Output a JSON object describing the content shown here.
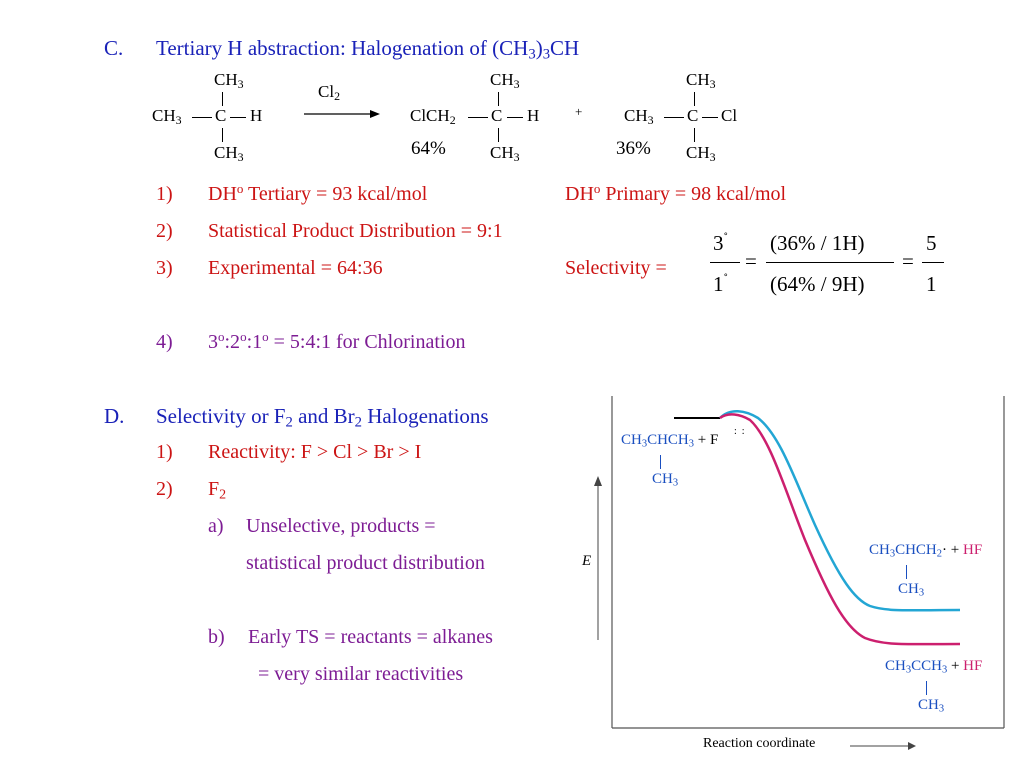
{
  "sectionC": {
    "letter": "C.",
    "title_pre": "Tertiary H abstraction: Halogenation of (CH",
    "title_sub1": "3",
    "title_mid": ")",
    "title_sub2": "3",
    "title_post": "CH"
  },
  "reaction": {
    "reactant": {
      "top": "CH",
      "top_sub": "3",
      "left": "CH",
      "left_sub": "3",
      "center": "C",
      "right": "H",
      "bottom": "CH",
      "bottom_sub": "3"
    },
    "reagent": "Cl",
    "reagent_sub": "2",
    "product1": {
      "top": "CH",
      "top_sub": "3",
      "left_a": "ClCH",
      "left_sub": "2",
      "center": "C",
      "right": "H",
      "bottom": "CH",
      "bottom_sub": "3",
      "yield": "64%"
    },
    "plus": "+",
    "product2": {
      "top": "CH",
      "top_sub": "3",
      "left": "CH",
      "left_sub": "3",
      "center": "C",
      "right": "Cl",
      "bottom": "CH",
      "bottom_sub": "3",
      "yield": "36%"
    }
  },
  "itemsC": {
    "n1": "1)",
    "i1_a": "DH",
    "i1_sup": "o",
    "i1_b": " Tertiary = 93 kcal/mol",
    "i1_c": "DH",
    "i1_c_sup": "o",
    "i1_d": " Primary = 98 kcal/mol",
    "n2": "2)",
    "i2": "Statistical Product Distribution = 9:1",
    "n3": "3)",
    "i3": "Experimental = 64:36",
    "i3_sel": "Selectivity =",
    "n4": "4)",
    "i4_a": "3",
    "i4_s1": "o",
    "i4_b": ":2",
    "i4_s2": "o",
    "i4_c": ":1",
    "i4_s3": "o",
    "i4_d": " = 5:4:1 for Chlorination"
  },
  "selectivity_eq": {
    "l_num": "3",
    "l_num_sup": "˚",
    "l_den": "1",
    "l_den_sup": "˚",
    "eq1": "=",
    "m_num": "(36% / 1H)",
    "m_den": "(64% / 9H)",
    "eq2": "=",
    "r_num": "5",
    "r_den": "1"
  },
  "sectionD": {
    "letter": "D.",
    "title_a": "Selectivity or F",
    "title_s1": "2",
    "title_b": " and Br",
    "title_s2": "2",
    "title_c": " Halogenations",
    "n1": "1)",
    "i1": "Reactivity:  F > Cl > Br > I",
    "n2": "2)",
    "i2": "F",
    "i2_sub": "2",
    "a_label": "a)",
    "a_text": "Unselective, products =",
    "a_text2": "statistical product distribution",
    "b_label": "b)",
    "b_text": "Early TS = reactants = alkanes",
    "b_text2": "= very similar reactivities"
  },
  "diagram": {
    "y_label": "E",
    "x_label": "Reaction coordinate",
    "reactants": {
      "line1": "CH",
      "s1": "3",
      "line1b": "CHCH",
      "s2": "3",
      "plus": "+",
      "radical": "F",
      "branch": "CH",
      "branch_sub": "3"
    },
    "product_primary": {
      "a": "CH",
      "s1": "3",
      "b": "CHCH",
      "s2": "2",
      "dot": "·",
      "plus": "+",
      "hf": "HF",
      "branch": "CH",
      "branch_sub": "3"
    },
    "product_tertiary": {
      "a": "CH",
      "s1": "3",
      "b": "CCH",
      "s2": "3",
      "plus": "+",
      "hf": "HF",
      "branch": "CH",
      "branch_sub": "3"
    },
    "colors": {
      "primary_curve": "#23a6d4",
      "tertiary_curve": "#cc1f6e"
    }
  }
}
